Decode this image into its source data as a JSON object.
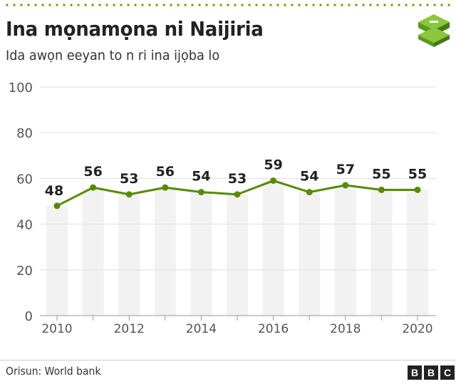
{
  "header": {
    "title": "Ina mọnamọna ni Naijiria",
    "subtitle": "Ida awọn eeyan to n ri ina ijọba lo"
  },
  "footer": {
    "source": "Orisun: World bank",
    "brand": [
      "B",
      "B",
      "C"
    ]
  },
  "colors": {
    "accent": "#588a00",
    "bar": "#f2f2f2",
    "grid": "#dddddd",
    "text": "#222222",
    "axis_text": "#555555",
    "dotted_rule": "#5fa000"
  },
  "icons": {
    "logo": "stacked-layers-icon"
  },
  "chart_data": {
    "type": "line",
    "title": "Ina mọnamọna ni Naijiria",
    "subtitle": "Ida awọn eeyan to n ri ina ijọba lo",
    "xlabel": "",
    "ylabel": "",
    "x": [
      2010,
      2011,
      2012,
      2013,
      2014,
      2015,
      2016,
      2017,
      2018,
      2019,
      2020
    ],
    "values": [
      48,
      56,
      53,
      56,
      54,
      53,
      59,
      54,
      57,
      55,
      55
    ],
    "data_labels": [
      "48",
      "56",
      "53",
      "56",
      "54",
      "53",
      "59",
      "54",
      "57",
      "55",
      "55"
    ],
    "x_tick_labels": [
      "2010",
      "2012",
      "2014",
      "2016",
      "2018",
      "2020"
    ],
    "y_ticks": [
      0,
      20,
      40,
      60,
      80,
      100
    ],
    "y_tick_labels": [
      "0",
      "20",
      "40",
      "60",
      "80",
      "100"
    ],
    "ylim": [
      0,
      100
    ],
    "grid": true,
    "background_bars": true,
    "legend": "none"
  }
}
